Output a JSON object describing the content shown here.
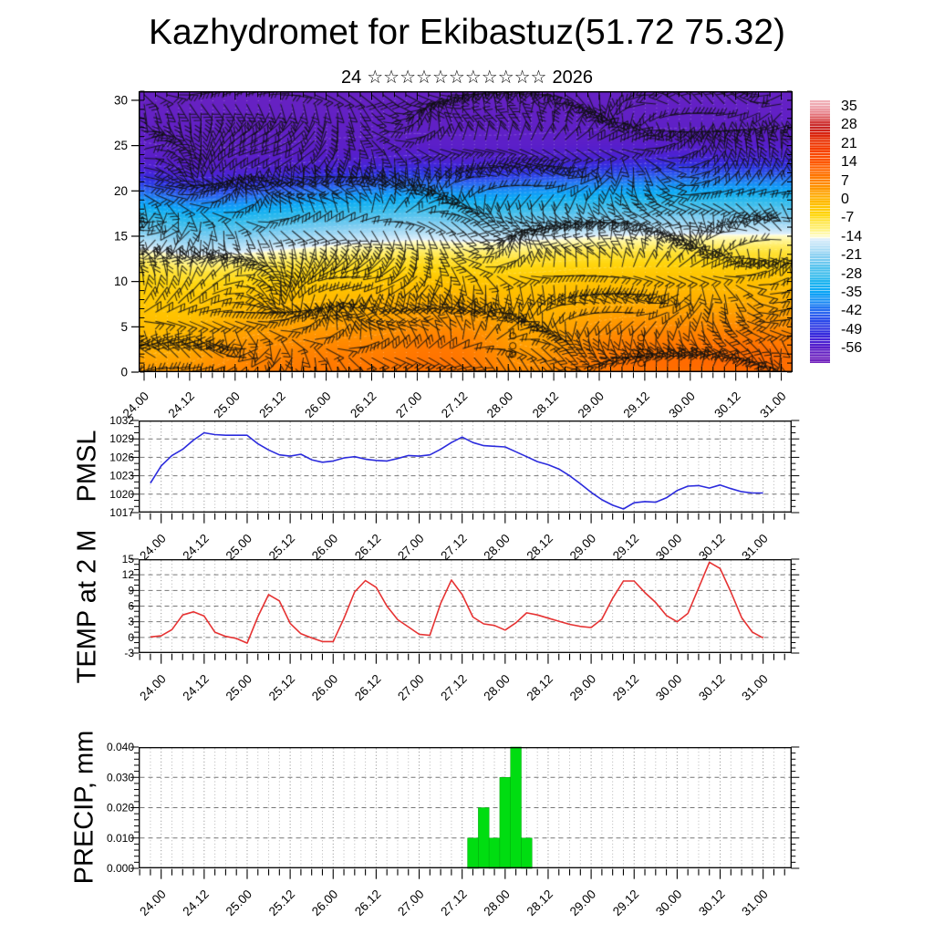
{
  "title": "Kazhydromet for Ekibastuz(51.72 75.32)",
  "subtitle": {
    "prefix": "24",
    "stars": "☆☆☆☆☆☆☆☆☆☆☆",
    "suffix": "2026"
  },
  "time_axis": {
    "step_hours": 3,
    "major_labels": [
      "24.00",
      "24.12",
      "25.00",
      "25.12",
      "26.00",
      "26.12",
      "27.00",
      "27.12",
      "28.00",
      "28.12",
      "29.00",
      "29.12",
      "30.00",
      "30.12",
      "31.00"
    ]
  },
  "colorbar": {
    "labels": [
      "35",
      "28",
      "21",
      "14",
      "7",
      "0",
      "-7",
      "-14",
      "-21",
      "-28",
      "-35",
      "-42",
      "-49",
      "-56"
    ],
    "top_value": 38,
    "bottom_value": -61,
    "stops": [
      [
        40,
        "#f2bcc4"
      ],
      [
        35,
        "#eea4ac"
      ],
      [
        33,
        "#e67880"
      ],
      [
        30,
        "#d44040"
      ],
      [
        28,
        "#c62424"
      ],
      [
        26,
        "#d42114"
      ],
      [
        23,
        "#e82e00"
      ],
      [
        20,
        "#f43c00"
      ],
      [
        16,
        "#fc4f00"
      ],
      [
        13,
        "#ff6000"
      ],
      [
        10,
        "#ff7300"
      ],
      [
        7,
        "#ff8700"
      ],
      [
        4,
        "#ff9c00"
      ],
      [
        1,
        "#ffb200"
      ],
      [
        -2,
        "#ffc400"
      ],
      [
        -5,
        "#ffd60e"
      ],
      [
        -8,
        "#ffe646"
      ],
      [
        -11,
        "#fff48c"
      ],
      [
        -13,
        "#fffbc2"
      ],
      [
        -13.8,
        "#fdfde0"
      ],
      [
        -14.2,
        "#e2f0fc"
      ],
      [
        -16,
        "#c6e6f8"
      ],
      [
        -19,
        "#a0d8f4"
      ],
      [
        -22,
        "#7cccf0"
      ],
      [
        -25,
        "#58c4ee"
      ],
      [
        -28,
        "#38bcec"
      ],
      [
        -31,
        "#1cb4f0"
      ],
      [
        -34,
        "#0ca8f6"
      ],
      [
        -37,
        "#1694f6"
      ],
      [
        -40,
        "#2478f2"
      ],
      [
        -43,
        "#2c5cee"
      ],
      [
        -46,
        "#2c44e8"
      ],
      [
        -49,
        "#3030e0"
      ],
      [
        -52,
        "#4424d8"
      ],
      [
        -55,
        "#581eca"
      ],
      [
        -58,
        "#6a22c0"
      ],
      [
        -62,
        "#7828bc"
      ]
    ]
  },
  "chart_data": [
    {
      "type": "heatmap",
      "name": "wind-temperature-height-cross-section",
      "ylim": [
        0,
        31
      ],
      "yticks": [
        0,
        5,
        10,
        15,
        20,
        25,
        30
      ],
      "ylabels": [
        "0",
        "5",
        "10",
        "15",
        "20",
        "25",
        "30"
      ],
      "x_start_day": 24,
      "x_end_day": 31,
      "profile": [
        [
          0,
          7.5
        ],
        [
          3,
          4.5
        ],
        [
          5,
          2.5
        ],
        [
          8,
          -0.5
        ],
        [
          10,
          -3
        ],
        [
          12,
          -7
        ],
        [
          13,
          -10
        ],
        [
          13.8,
          -13
        ],
        [
          14.5,
          -16
        ],
        [
          15.5,
          -20
        ],
        [
          16.5,
          -24
        ],
        [
          18,
          -30
        ],
        [
          19.5,
          -37
        ],
        [
          20.5,
          -42
        ],
        [
          21.3,
          -47
        ],
        [
          22,
          -50.5
        ],
        [
          23,
          -53.5
        ],
        [
          24.5,
          -55.5
        ],
        [
          27,
          -56.5
        ],
        [
          31,
          -57.5
        ]
      ],
      "shift": [
        [
          24,
          -0.4
        ],
        [
          24.5,
          -1.1
        ],
        [
          25,
          -0.9
        ],
        [
          25.5,
          -0.5
        ],
        [
          26,
          0
        ],
        [
          26.5,
          0.3
        ],
        [
          27,
          0.6
        ],
        [
          27.5,
          0.4
        ],
        [
          28,
          0.4
        ],
        [
          28.5,
          0.7
        ],
        [
          29,
          1
        ],
        [
          29.5,
          1.1
        ],
        [
          30,
          1.2
        ],
        [
          31,
          1.2
        ]
      ],
      "blobs": [
        [
          25.9,
          2,
          2.5,
          1.0,
          3
        ],
        [
          27.45,
          3.5,
          3.5,
          0.5,
          3
        ],
        [
          29.6,
          2,
          3.5,
          0.9,
          3.5
        ],
        [
          30.8,
          2,
          3,
          0.5,
          3
        ],
        [
          24.15,
          3,
          -3.5,
          0.45,
          4
        ],
        [
          28.25,
          2.5,
          -3.5,
          0.45,
          3.5
        ]
      ],
      "barb_field": {
        "a1": 1.6,
        "f1": 0.85,
        "g1": 0.5,
        "a2": 1.2,
        "f2": 1.6,
        "g2": 0.33,
        "a3": 0.7,
        "f3": 0.9,
        "bias": 0.6,
        "len": 22
      },
      "calm_circles": [
        [
          28.05,
          4.0
        ],
        [
          28.05,
          2.9
        ],
        [
          28.05,
          2.0
        ],
        [
          28.01,
          2.0
        ],
        [
          29.46,
          3.8
        ],
        [
          29.46,
          2.8
        ],
        [
          29.46,
          1.9
        ],
        [
          29.46,
          1.0
        ]
      ]
    },
    {
      "type": "line",
      "name": "PMSL",
      "color": "#2b2bdd",
      "ylim": [
        1017,
        1032
      ],
      "ymajors": [
        1017,
        1020,
        1023,
        1026,
        1029,
        1032
      ],
      "ylabels": [
        "1017",
        "1020",
        "1023",
        "1026",
        "1029",
        "1032"
      ],
      "x_start_day": 23.875,
      "step_days": 0.125,
      "values": [
        1021.8,
        1024.6,
        1026.3,
        1027.3,
        1028.8,
        1030.0,
        1029.7,
        1029.6,
        1029.6,
        1029.6,
        1028.2,
        1027.2,
        1026.4,
        1026.2,
        1026.5,
        1025.6,
        1025.2,
        1025.4,
        1025.9,
        1026.1,
        1025.7,
        1025.5,
        1025.4,
        1025.8,
        1026.3,
        1026.2,
        1026.4,
        1027.3,
        1028.4,
        1029.3,
        1028.4,
        1027.9,
        1027.8,
        1027.7,
        1026.9,
        1026.1,
        1025.3,
        1024.8,
        1024.1,
        1023.0,
        1021.7,
        1020.3,
        1019.1,
        1018.2,
        1017.6,
        1018.6,
        1018.8,
        1018.7,
        1019.4,
        1020.6,
        1021.3,
        1021.4,
        1021.0,
        1021.5,
        1020.9,
        1020.4,
        1020.2,
        1020.2
      ]
    },
    {
      "type": "line",
      "name": "TEMP at 2 M",
      "color": "#e63232",
      "ylim": [
        -3,
        15
      ],
      "ymajors": [
        -3,
        0,
        3,
        6,
        9,
        12,
        15
      ],
      "ylabels": [
        "-3",
        "0",
        "3",
        "6",
        "9",
        "12",
        "15"
      ],
      "x_start_day": 23.875,
      "step_days": 0.125,
      "values": [
        0.1,
        0.3,
        1.5,
        4.3,
        4.9,
        4.1,
        1.0,
        0.2,
        -0.2,
        -1.1,
        4.0,
        8.2,
        7.0,
        2.7,
        0.7,
        -0.1,
        -0.8,
        -0.8,
        3.6,
        8.7,
        10.9,
        9.6,
        6.0,
        3.4,
        2.0,
        0.6,
        0.4,
        6.5,
        11.0,
        8.2,
        3.9,
        2.6,
        2.3,
        1.4,
        2.8,
        4.7,
        4.3,
        3.7,
        3.1,
        2.5,
        2.1,
        1.9,
        3.5,
        7.5,
        10.8,
        10.8,
        8.6,
        6.7,
        4.2,
        3.0,
        4.6,
        9.5,
        14.4,
        13.2,
        8.7,
        3.8,
        1.0,
        -0.1
      ]
    },
    {
      "type": "bar",
      "name": "PRECIP, mm",
      "color": "#00dd11",
      "ylim": [
        0,
        0.04
      ],
      "ymajors": [
        0,
        0.01,
        0.02,
        0.03,
        0.04
      ],
      "ylabels": [
        "0.000",
        "0.010",
        "0.020",
        "0.030",
        "0.040"
      ],
      "x_start_day": 23.875,
      "step_days": 0.125,
      "values": [
        0,
        0,
        0,
        0,
        0,
        0,
        0,
        0,
        0,
        0,
        0,
        0,
        0,
        0,
        0,
        0,
        0,
        0,
        0,
        0,
        0,
        0,
        0,
        0,
        0,
        0,
        0,
        0,
        0,
        0,
        0.01,
        0.02,
        0.01,
        0.03,
        0.04,
        0.01,
        0,
        0,
        0,
        0,
        0,
        0,
        0,
        0,
        0,
        0,
        0,
        0,
        0,
        0,
        0,
        0,
        0,
        0,
        0,
        0,
        0,
        0
      ]
    }
  ]
}
